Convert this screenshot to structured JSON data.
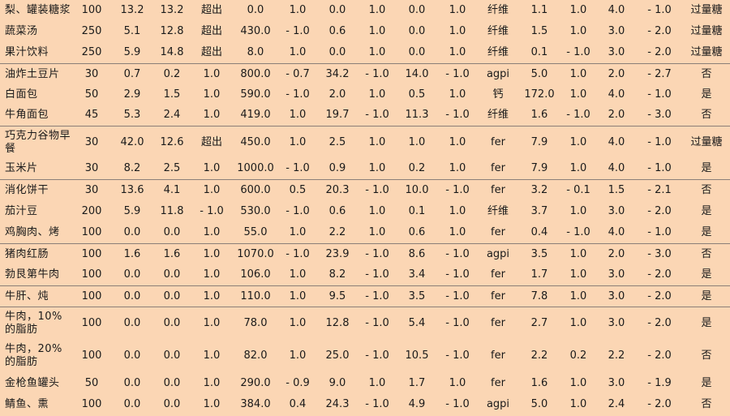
{
  "rows": [
    {
      "cells": [
        "梨、罐装糖浆",
        "100",
        "13.2",
        "13.2",
        "超出",
        "0.0",
        "1.0",
        "0.0",
        "1.0",
        "0.0",
        "1.0",
        "纤维",
        "1.1",
        "1.0",
        "4.0",
        "- 1.0",
        "过量糖"
      ]
    },
    {
      "cells": [
        "蔬菜汤",
        "250",
        "5.1",
        "12.8",
        "超出",
        "430.0",
        "- 1.0",
        "0.6",
        "1.0",
        "0.0",
        "1.0",
        "纤维",
        "1.5",
        "1.0",
        "3.0",
        "- 2.0",
        "过量糖"
      ]
    },
    {
      "cells": [
        "果汁饮料",
        "250",
        "5.9",
        "14.8",
        "超出",
        "8.0",
        "1.0",
        "0.0",
        "1.0",
        "0.0",
        "1.0",
        "纤维",
        "0.1",
        "- 1.0",
        "3.0",
        "- 2.0",
        "过量糖"
      ]
    },
    {
      "cells": [
        "油炸土豆片",
        "30",
        "0.7",
        "0.2",
        "1.0",
        "800.0",
        "- 0.7",
        "34.2",
        "- 1.0",
        "14.0",
        "- 1.0",
        "agpi",
        "5.0",
        "1.0",
        "2.0",
        "- 2.7",
        "否"
      ]
    },
    {
      "cells": [
        "白面包",
        "50",
        "2.9",
        "1.5",
        "1.0",
        "590.0",
        "- 1.0",
        "2.0",
        "1.0",
        "0.5",
        "1.0",
        "钙",
        "172.0",
        "1.0",
        "4.0",
        "- 1.0",
        "是"
      ]
    },
    {
      "cells": [
        "牛角面包",
        "45",
        "5.3",
        "2.4",
        "1.0",
        "419.0",
        "1.0",
        "19.7",
        "- 1.0",
        "11.3",
        "- 1.0",
        "纤维",
        "1.6",
        "- 1.0",
        "2.0",
        "- 3.0",
        "否"
      ]
    },
    {
      "cells": [
        "巧克力谷物早餐",
        "30",
        "42.0",
        "12.6",
        "超出",
        "450.0",
        "1.0",
        "2.5",
        "1.0",
        "1.0",
        "1.0",
        "fer",
        "7.9",
        "1.0",
        "4.0",
        "- 1.0",
        "过量糖"
      ]
    },
    {
      "cells": [
        "玉米片",
        "30",
        "8.2",
        "2.5",
        "1.0",
        "1000.0",
        "- 1.0",
        "0.9",
        "1.0",
        "0.2",
        "1.0",
        "fer",
        "7.9",
        "1.0",
        "4.0",
        "- 1.0",
        "是"
      ]
    },
    {
      "cells": [
        "消化饼干",
        "30",
        "13.6",
        "4.1",
        "1.0",
        "600.0",
        "0.5",
        "20.3",
        "- 1.0",
        "10.0",
        "- 1.0",
        "fer",
        "3.2",
        "- 0.1",
        "1.5",
        "- 2.1",
        "否"
      ]
    },
    {
      "cells": [
        "茄汁豆",
        "200",
        "5.9",
        "11.8",
        "- 1.0",
        "530.0",
        "- 1.0",
        "0.6",
        "1.0",
        "0.1",
        "1.0",
        "纤维",
        "3.7",
        "1.0",
        "3.0",
        "- 2.0",
        "是"
      ]
    },
    {
      "cells": [
        "鸡胸肉、烤",
        "100",
        "0.0",
        "0.0",
        "1.0",
        "55.0",
        "1.0",
        "2.2",
        "1.0",
        "0.6",
        "1.0",
        "fer",
        "0.4",
        "- 1.0",
        "4.0",
        "- 1.0",
        "是"
      ]
    },
    {
      "cells": [
        "猪肉红肠",
        "100",
        "1.6",
        "1.6",
        "1.0",
        "1070.0",
        "- 1.0",
        "23.9",
        "- 1.0",
        "8.6",
        "- 1.0",
        "agpi",
        "3.5",
        "1.0",
        "2.0",
        "- 3.0",
        "否"
      ]
    },
    {
      "cells": [
        "勃艮第牛肉",
        "100",
        "0.0",
        "0.0",
        "1.0",
        "106.0",
        "1.0",
        "8.2",
        "- 1.0",
        "3.4",
        "- 1.0",
        "fer",
        "1.7",
        "1.0",
        "3.0",
        "- 2.0",
        "是"
      ]
    },
    {
      "cells": [
        "牛肝、炖",
        "100",
        "0.0",
        "0.0",
        "1.0",
        "110.0",
        "1.0",
        "9.5",
        "- 1.0",
        "3.5",
        "- 1.0",
        "fer",
        "7.8",
        "1.0",
        "3.0",
        "- 2.0",
        "是"
      ]
    },
    {
      "cells": [
        "牛肉，10%的脂肪",
        "100",
        "0.0",
        "0.0",
        "1.0",
        "78.0",
        "1.0",
        "12.8",
        "- 1.0",
        "5.4",
        "- 1.0",
        "fer",
        "2.7",
        "1.0",
        "3.0",
        "- 2.0",
        "是"
      ]
    },
    {
      "cells": [
        "牛肉，20%的脂肪",
        "100",
        "0.0",
        "0.0",
        "1.0",
        "82.0",
        "1.0",
        "25.0",
        "- 1.0",
        "10.5",
        "- 1.0",
        "fer",
        "2.2",
        "0.2",
        "2.2",
        "- 2.0",
        "否"
      ]
    },
    {
      "cells": [
        "金枪鱼罐头",
        "50",
        "0.0",
        "0.0",
        "1.0",
        "290.0",
        "- 0.9",
        "9.0",
        "1.0",
        "1.7",
        "1.0",
        "fer",
        "1.6",
        "1.0",
        "3.0",
        "- 1.9",
        "是"
      ]
    },
    {
      "cells": [
        "鲭鱼、熏",
        "100",
        "0.0",
        "0.0",
        "1.0",
        "384.0",
        "0.4",
        "24.3",
        "- 1.0",
        "4.9",
        "- 1.0",
        "agpi",
        "5.0",
        "1.0",
        "2.4",
        "- 2.0",
        "否"
      ]
    }
  ]
}
